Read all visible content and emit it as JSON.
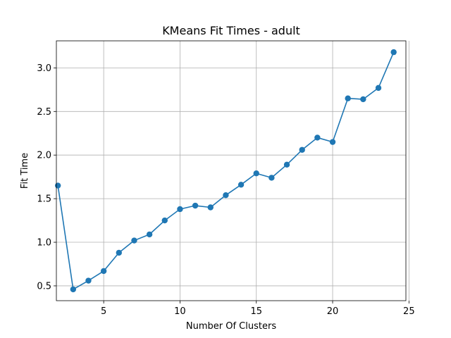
{
  "chart_data": {
    "type": "line",
    "title": "KMeans Fit Times - adult",
    "xlabel": "Number Of Clusters",
    "ylabel": "Fit Time",
    "xlim": [
      1.9,
      24.8
    ],
    "ylim": [
      0.33,
      3.31
    ],
    "xticks": [
      5,
      10,
      15,
      20,
      25
    ],
    "yticks": [
      0.5,
      1.0,
      1.5,
      2.0,
      2.5,
      3.0
    ],
    "xtick_labels": [
      "5",
      "10",
      "15",
      "20",
      "25"
    ],
    "ytick_labels": [
      "0.5",
      "1.0",
      "1.5",
      "2.0",
      "2.5",
      "3.0"
    ],
    "grid": true,
    "marker": "circle",
    "color": "#1f77b4",
    "series": [
      {
        "x": [
          2,
          3,
          4,
          5,
          6,
          7,
          8,
          9,
          10,
          11,
          12,
          13,
          14,
          15,
          16,
          17,
          18,
          19,
          20,
          21,
          22,
          23,
          24
        ],
        "values": [
          1.65,
          0.46,
          0.56,
          0.67,
          0.88,
          1.02,
          1.09,
          1.25,
          1.38,
          1.42,
          1.4,
          1.54,
          1.66,
          1.79,
          1.74,
          1.89,
          2.06,
          2.2,
          2.15,
          2.65,
          2.64,
          2.77,
          3.18
        ]
      }
    ]
  }
}
